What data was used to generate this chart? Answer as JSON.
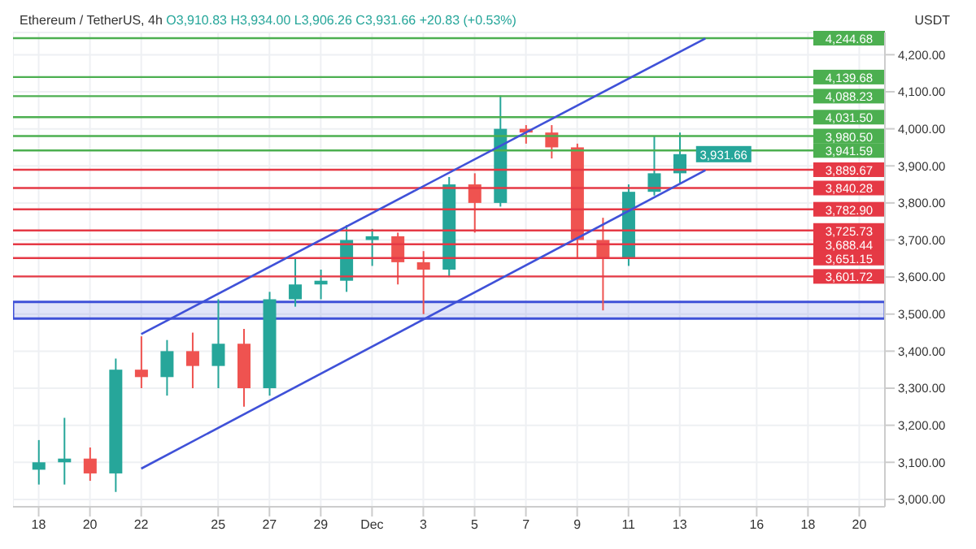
{
  "chart_data": {
    "type": "candlestick",
    "title": "Ethereum / TetherUS, 4h",
    "subtitle": "O3,910.83 H3,934.00 L3,906.26 C3,931.66 +20.83 (+0.53%)",
    "ylabel": "USDT",
    "x": [
      "--11-18",
      "--11-19",
      "--11-20",
      "--11-21",
      "--11-22",
      "--11-23",
      "--11-24",
      "--11-25",
      "--11-26",
      "--11-27",
      "--11-28",
      "--11-29",
      "--11-30",
      "--12-01",
      "--12-02",
      "--12-03",
      "--12-04",
      "--12-05",
      "--12-06",
      "--12-07",
      "--12-08",
      "--12-09",
      "--12-10",
      "--12-11",
      "--12-12",
      "--12-13"
    ],
    "ohlc": [
      [
        3080,
        3160,
        3040,
        3100
      ],
      [
        3100,
        3220,
        3040,
        3110
      ],
      [
        3110,
        3140,
        3050,
        3070
      ],
      [
        3070,
        3380,
        3020,
        3350
      ],
      [
        3350,
        3440,
        3300,
        3330
      ],
      [
        3330,
        3430,
        3280,
        3400
      ],
      [
        3400,
        3450,
        3300,
        3360
      ],
      [
        3360,
        3540,
        3300,
        3420
      ],
      [
        3420,
        3460,
        3250,
        3300
      ],
      [
        3300,
        3560,
        3280,
        3540
      ],
      [
        3540,
        3650,
        3520,
        3580
      ],
      [
        3580,
        3620,
        3540,
        3590
      ],
      [
        3590,
        3740,
        3560,
        3700
      ],
      [
        3700,
        3730,
        3630,
        3710
      ],
      [
        3710,
        3720,
        3580,
        3640
      ],
      [
        3640,
        3670,
        3500,
        3620
      ],
      [
        3620,
        3870,
        3600,
        3850
      ],
      [
        3850,
        3880,
        3720,
        3800
      ],
      [
        3800,
        4090,
        3790,
        4000
      ],
      [
        4000,
        4010,
        3960,
        3990
      ],
      [
        3990,
        4010,
        3920,
        3950
      ],
      [
        3950,
        3960,
        3650,
        3700
      ],
      [
        3700,
        3760,
        3510,
        3650
      ],
      [
        3650,
        3850,
        3630,
        3830
      ],
      [
        3830,
        3980,
        3820,
        3880
      ],
      [
        3880,
        3990,
        3850,
        3931.66
      ]
    ],
    "series": [
      {
        "type": "line",
        "color": "#3f51d8",
        "x": [
          "--11-22",
          "--12-14"
        ],
        "values": [
          3446,
          4244
        ]
      },
      {
        "type": "line",
        "color": "#3f51d8",
        "x": [
          "--11-22",
          "--12-14"
        ],
        "values": [
          3083,
          3888
        ]
      }
    ],
    "xlim": [
      "--11-17",
      "--12-21"
    ],
    "xticks": [
      {
        "value": "--11-18",
        "label": "18"
      },
      {
        "value": "--11-20",
        "label": "20"
      },
      {
        "value": "--11-22",
        "label": "22"
      },
      {
        "value": "--11-25",
        "label": "25"
      },
      {
        "value": "--11-27",
        "label": "27"
      },
      {
        "value": "--11-29",
        "label": "29"
      },
      {
        "value": "--12-01",
        "label": "Dec"
      },
      {
        "value": "--12-03",
        "label": "3"
      },
      {
        "value": "--12-05",
        "label": "5"
      },
      {
        "value": "--12-07",
        "label": "7"
      },
      {
        "value": "--12-09",
        "label": "9"
      },
      {
        "value": "--12-11",
        "label": "11"
      },
      {
        "value": "--12-13",
        "label": "13"
      },
      {
        "value": "--12-16",
        "label": "16"
      },
      {
        "value": "--12-18",
        "label": "18"
      },
      {
        "value": "--12-20",
        "label": "20"
      }
    ],
    "ylim": [
      2980,
      4260
    ],
    "yticks": [
      {
        "value": 3000,
        "label": "3,000.00"
      },
      {
        "value": 3100,
        "label": "3,100.00"
      },
      {
        "value": 3200,
        "label": "3,200.00"
      },
      {
        "value": 3300,
        "label": "3,300.00"
      },
      {
        "value": 3400,
        "label": "3,400.00"
      },
      {
        "value": 3500,
        "label": "3,500.00"
      },
      {
        "value": 3600,
        "label": "3,600.00"
      },
      {
        "value": 3700,
        "label": "3,700.00"
      },
      {
        "value": 3800,
        "label": "3,800.00"
      },
      {
        "value": 3900,
        "label": "3,900.00"
      },
      {
        "value": 4000,
        "label": "4,000.00"
      },
      {
        "value": 4100,
        "label": "4,100.00"
      },
      {
        "value": 4200,
        "label": "4,200.00"
      }
    ],
    "grid": true,
    "ref_lines": [
      {
        "axis": "y",
        "value": 4244.68,
        "label": "4,244.68",
        "color": "#4caf50"
      },
      {
        "axis": "y",
        "value": 4139.68,
        "label": "4,139.68",
        "color": "#4caf50"
      },
      {
        "axis": "y",
        "value": 4088.23,
        "label": "4,088.23",
        "color": "#4caf50"
      },
      {
        "axis": "y",
        "value": 4031.5,
        "label": "4,031.50",
        "color": "#4caf50"
      },
      {
        "axis": "y",
        "value": 3980.5,
        "label": "3,980.50",
        "color": "#4caf50"
      },
      {
        "axis": "y",
        "value": 3941.59,
        "label": "3,941.59",
        "color": "#4caf50"
      },
      {
        "axis": "y",
        "value": 3889.67,
        "label": "3,889.67",
        "color": "#e53945"
      },
      {
        "axis": "y",
        "value": 3840.28,
        "label": "3,840.28",
        "color": "#e53945"
      },
      {
        "axis": "y",
        "value": 3782.9,
        "label": "3,782.90",
        "color": "#e53945"
      },
      {
        "axis": "y",
        "value": 3725.73,
        "label": "3,725.73",
        "color": "#e53945"
      },
      {
        "axis": "y",
        "value": 3688.44,
        "label": "3,688.44",
        "color": "#e53945"
      },
      {
        "axis": "y",
        "value": 3651.15,
        "label": "3,651.15",
        "color": "#e53945"
      },
      {
        "axis": "y",
        "value": 3601.72,
        "label": "3,601.72",
        "color": "#e53945"
      }
    ],
    "bands": [
      {
        "axis": "y",
        "from": 3488,
        "to": 3533,
        "color": "#3f51d8"
      }
    ],
    "annotations": [
      {
        "text": "3,931.66",
        "x": "--12-13",
        "y": 3931.66
      }
    ]
  }
}
